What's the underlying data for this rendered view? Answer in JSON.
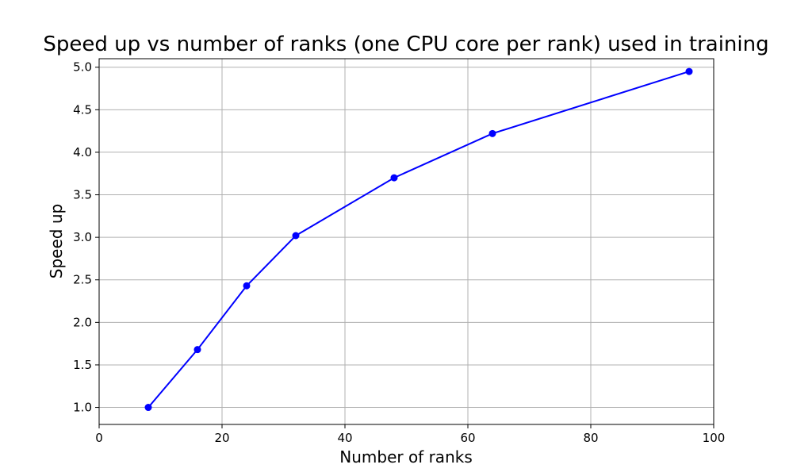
{
  "chart_data": {
    "type": "line",
    "title": "Speed up vs number of ranks (one CPU core per rank) used in training",
    "xlabel": "Number of ranks",
    "ylabel": "Speed up",
    "xlim": [
      0,
      100
    ],
    "ylim": [
      0.8,
      5.1
    ],
    "xticks": [
      0,
      20,
      40,
      60,
      80,
      100
    ],
    "yticks": [
      1.0,
      1.5,
      2.0,
      2.5,
      3.0,
      3.5,
      4.0,
      4.5,
      5.0
    ],
    "xtick_labels": [
      "0",
      "20",
      "40",
      "60",
      "80",
      "100"
    ],
    "ytick_labels": [
      "1.0",
      "1.5",
      "2.0",
      "2.5",
      "3.0",
      "3.5",
      "4.0",
      "4.5",
      "5.0"
    ],
    "grid": true,
    "series": [
      {
        "color": "#0000ff",
        "marker": "circle",
        "x": [
          8,
          16,
          24,
          32,
          48,
          64,
          96
        ],
        "y": [
          1.0,
          1.68,
          2.43,
          3.02,
          3.7,
          4.22,
          4.95
        ]
      }
    ]
  }
}
